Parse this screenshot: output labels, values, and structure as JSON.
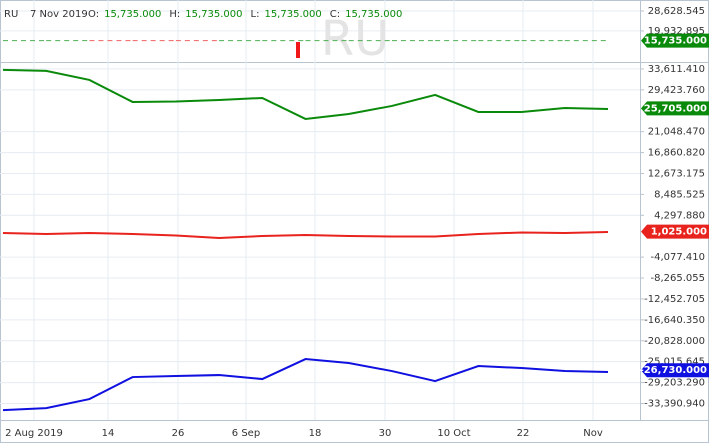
{
  "chart_data": [
    {
      "type": "line",
      "symbol": "RU",
      "date": "7 Nov 2019",
      "ohlc": [
        {
          "label": "O:",
          "value": 15735,
          "value_label": "15,735.000"
        },
        {
          "label": "H:",
          "value": 15735,
          "value_label": "15,735.000"
        },
        {
          "label": "L:",
          "value": 15735,
          "value_label": "15,735.000"
        },
        {
          "label": "C:",
          "value": 15735,
          "value_label": "15,735.000"
        }
      ],
      "ylim": [
        6400,
        33400
      ],
      "yticks": [
        {
          "value": 28628.545,
          "label": "28,628.545"
        },
        {
          "value": 19932.895,
          "label": "19,932.895"
        }
      ],
      "series": [
        {
          "color": "#4caf50",
          "dashed": true,
          "values": [
            15735,
            15735,
            15735,
            15735,
            15735,
            15735,
            15735,
            15735,
            15735,
            15735,
            15735,
            15735,
            15735,
            15735,
            15735
          ],
          "segment_colors": [
            "#4caf50",
            "#4caf50",
            "#f06060",
            "#f06060",
            "#f06060",
            "#4caf50",
            "#4caf50",
            "#4caf50",
            "#4caf50",
            "#4caf50",
            "#4caf50",
            "#4caf50",
            "#4caf50",
            "#4caf50"
          ],
          "last_value": 15735,
          "last_value_label": "15,735.000"
        }
      ]
    },
    {
      "type": "line",
      "ylim": [
        -36700,
        35000
      ],
      "yticks": [
        {
          "value": 33611.41,
          "label": "33,611.410"
        },
        {
          "value": 29423.76,
          "label": "29,423.760"
        },
        {
          "value": 21048.47,
          "label": "21,048.470"
        },
        {
          "value": 16860.82,
          "label": "16,860.820"
        },
        {
          "value": 12673.175,
          "label": "12,673.175"
        },
        {
          "value": 8485.525,
          "label": "8,485.525"
        },
        {
          "value": 4297.88,
          "label": "4,297.880"
        },
        {
          "value": -4077.41,
          "label": "-4,077.410"
        },
        {
          "value": -8265.055,
          "label": "-8,265.055"
        },
        {
          "value": -12452.705,
          "label": "-12,452.705"
        },
        {
          "value": -16640.35,
          "label": "-16,640.350"
        },
        {
          "value": -20828,
          "label": "-20,828.000"
        },
        {
          "value": -25015.645,
          "label": "-25,015.645"
        },
        {
          "value": -29203.29,
          "label": "-29,203.290"
        },
        {
          "value": -33390.94,
          "label": "-33,390.940"
        }
      ],
      "x_tick_labels": [
        "2 Aug 2019",
        "14",
        "26",
        "6 Sep",
        "18",
        "30",
        "10 Oct",
        "22",
        "Nov"
      ],
      "series": [
        {
          "color": "#0a8a0a",
          "values": [
            33411,
            33211,
            31407,
            26999,
            27100,
            27400,
            27800,
            23593,
            24595,
            26198,
            28402,
            24996,
            24996,
            25797,
            25597
          ],
          "last_value": 25705,
          "last_value_label": "25,705.000"
        },
        {
          "color": "#e8231d",
          "values": [
            753,
            552,
            753,
            552,
            252,
            -250,
            150,
            353,
            150,
            50,
            50,
            552,
            853,
            753,
            953
          ],
          "last_value": 1025,
          "last_value_label": "1,025.000"
        },
        {
          "color": "#1010e0",
          "values": [
            -34712,
            -34311,
            -32508,
            -28100,
            -27900,
            -27700,
            -28500,
            -24493,
            -25294,
            -26897,
            -28900,
            -25895,
            -26296,
            -26897,
            -27097
          ],
          "last_value": -26730,
          "last_value_label": "-26,730.000"
        }
      ]
    }
  ]
}
